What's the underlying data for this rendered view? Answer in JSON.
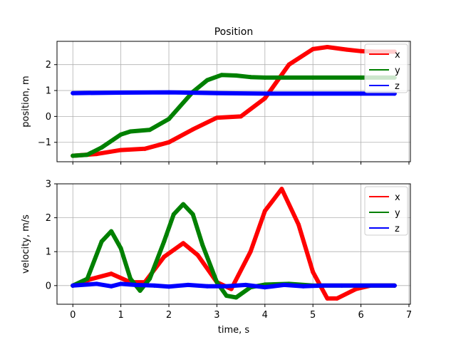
{
  "colors": {
    "x": "#ff0000",
    "y": "#008000",
    "z": "#0000ff",
    "grid": "#b0b0b0"
  },
  "chart_data": [
    {
      "type": "line",
      "title": "Position",
      "xlabel": "",
      "ylabel": "position, m",
      "xlim": [
        -0.33,
        7.03
      ],
      "ylim": [
        -1.75,
        2.9
      ],
      "xticks": [
        0,
        1,
        2,
        3,
        4,
        5,
        6,
        7
      ],
      "yticks": [
        -1,
        0,
        1,
        2
      ],
      "ytick_labels": [
        "−1",
        "0",
        "1",
        "2"
      ],
      "grid": true,
      "legend": "top-right",
      "series": [
        {
          "name": "x",
          "color": "#ff0000",
          "x": [
            0,
            0.5,
            1,
            1.5,
            2,
            2.5,
            3,
            3.5,
            4,
            4.5,
            5,
            5.3,
            5.7,
            6,
            6.3,
            6.7
          ],
          "y": [
            -1.52,
            -1.45,
            -1.3,
            -1.25,
            -1.0,
            -0.5,
            -0.05,
            0.0,
            0.7,
            2.0,
            2.6,
            2.68,
            2.58,
            2.52,
            2.5,
            2.5
          ]
        },
        {
          "name": "y",
          "color": "#008000",
          "x": [
            0,
            0.3,
            0.6,
            1.0,
            1.2,
            1.6,
            2.0,
            2.5,
            2.8,
            3.1,
            3.4,
            3.7,
            4.0,
            5.0,
            6.0,
            6.7
          ],
          "y": [
            -1.52,
            -1.48,
            -1.2,
            -0.7,
            -0.58,
            -0.52,
            -0.1,
            0.95,
            1.4,
            1.6,
            1.58,
            1.52,
            1.5,
            1.5,
            1.5,
            1.5
          ]
        },
        {
          "name": "z",
          "color": "#0000ff",
          "x": [
            0,
            1,
            2,
            3,
            4,
            5,
            6,
            6.7
          ],
          "y": [
            0.9,
            0.92,
            0.93,
            0.9,
            0.88,
            0.88,
            0.88,
            0.88
          ]
        }
      ]
    },
    {
      "type": "line",
      "title": "",
      "xlabel": "time, s",
      "ylabel": "velocity, m/s",
      "xlim": [
        -0.33,
        7.03
      ],
      "ylim": [
        -0.55,
        3.0
      ],
      "xticks": [
        0,
        1,
        2,
        3,
        4,
        5,
        6,
        7
      ],
      "yticks": [
        0,
        1,
        2,
        3
      ],
      "ytick_labels": [
        "0",
        "1",
        "2",
        "3"
      ],
      "grid": true,
      "legend": "top-right",
      "series": [
        {
          "name": "x",
          "color": "#ff0000",
          "x": [
            0,
            0.4,
            0.8,
            1.2,
            1.5,
            1.9,
            2.3,
            2.6,
            3.0,
            3.3,
            3.7,
            4.0,
            4.35,
            4.7,
            5.0,
            5.3,
            5.5,
            5.9,
            6.2,
            6.7
          ],
          "y": [
            0,
            0.2,
            0.35,
            0.1,
            0.1,
            0.85,
            1.25,
            0.9,
            0.1,
            -0.1,
            1.0,
            2.2,
            2.85,
            1.8,
            0.4,
            -0.38,
            -0.38,
            -0.1,
            0,
            0
          ]
        },
        {
          "name": "y",
          "color": "#008000",
          "x": [
            0,
            0.3,
            0.6,
            0.8,
            1.0,
            1.2,
            1.4,
            1.6,
            1.9,
            2.1,
            2.3,
            2.5,
            2.7,
            3.0,
            3.2,
            3.4,
            3.7,
            4.0,
            4.5,
            5.0,
            6.0,
            6.7
          ],
          "y": [
            0,
            0.2,
            1.3,
            1.6,
            1.1,
            0.2,
            -0.15,
            0.2,
            1.3,
            2.1,
            2.4,
            2.1,
            1.2,
            0.1,
            -0.3,
            -0.35,
            -0.05,
            0.03,
            0.05,
            0,
            0,
            0
          ]
        },
        {
          "name": "z",
          "color": "#0000ff",
          "x": [
            0,
            0.5,
            0.8,
            1.0,
            1.3,
            1.7,
            2.0,
            2.4,
            2.8,
            3.2,
            3.6,
            4.0,
            4.4,
            4.8,
            5.2,
            5.6,
            6.0,
            6.7
          ],
          "y": [
            0,
            0.05,
            -0.02,
            0.05,
            0.02,
            0.0,
            -0.03,
            0.02,
            -0.02,
            -0.02,
            0.02,
            -0.05,
            0.02,
            -0.02,
            0.0,
            0.0,
            0.0,
            0.0
          ]
        }
      ]
    }
  ]
}
